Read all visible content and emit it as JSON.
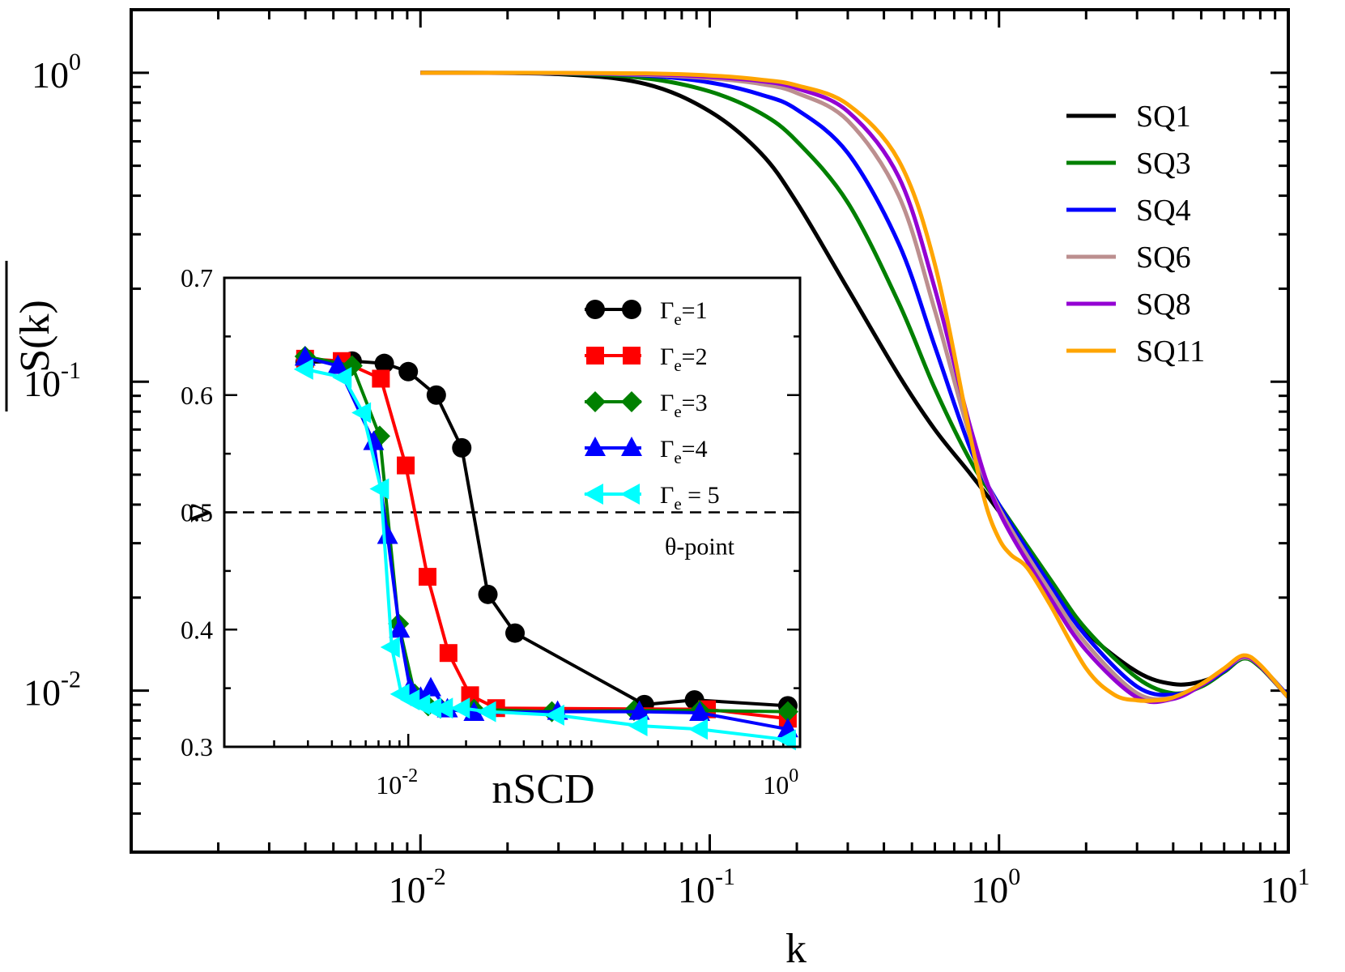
{
  "chart_data": [
    {
      "type": "line",
      "name": "main",
      "xscale": "log",
      "yscale": "log",
      "xlim": [
        0.001,
        10
      ],
      "ylim": [
        0.003,
        1.6
      ],
      "xlabel": "k",
      "ylabel": "S(k)",
      "xticks": [
        {
          "base": "10",
          "exp": "-2",
          "value": 0.01
        },
        {
          "base": "10",
          "exp": "-1",
          "value": 0.1
        },
        {
          "base": "10",
          "exp": "0",
          "value": 1
        },
        {
          "base": "10",
          "exp": "1",
          "value": 10
        }
      ],
      "yticks": [
        {
          "base": "10",
          "exp": "0",
          "value": 1
        },
        {
          "base": "10",
          "exp": "-1",
          "value": 0.1
        },
        {
          "base": "10",
          "exp": "-2",
          "value": 0.01
        }
      ],
      "legend_position": "top-right",
      "series": [
        {
          "name": "SQ1",
          "color": "#000000",
          "x": [
            0.01,
            0.03,
            0.06,
            0.1,
            0.15,
            0.2,
            0.3,
            0.45,
            0.6,
            0.8,
            1.0,
            1.5,
            2.0,
            3.0,
            4.0,
            5.0,
            6.0,
            7.0,
            8.0,
            10.0
          ],
          "y": [
            1.0,
            0.99,
            0.92,
            0.75,
            0.55,
            0.38,
            0.2,
            0.105,
            0.07,
            0.05,
            0.038,
            0.022,
            0.0155,
            0.0115,
            0.0105,
            0.0107,
            0.0115,
            0.0128,
            0.012,
            0.0095
          ]
        },
        {
          "name": "SQ3",
          "color": "#008000",
          "x": [
            0.01,
            0.03,
            0.06,
            0.1,
            0.15,
            0.2,
            0.3,
            0.45,
            0.6,
            0.8,
            1.0,
            1.5,
            2.0,
            3.0,
            4.0,
            5.0,
            6.0,
            7.0,
            8.0,
            10.0
          ],
          "y": [
            1.0,
            0.995,
            0.96,
            0.87,
            0.74,
            0.6,
            0.38,
            0.18,
            0.095,
            0.055,
            0.04,
            0.023,
            0.0158,
            0.011,
            0.0098,
            0.0103,
            0.0115,
            0.0127,
            0.0119,
            0.0095
          ]
        },
        {
          "name": "SQ4",
          "color": "#0000ff",
          "x": [
            0.01,
            0.03,
            0.06,
            0.1,
            0.15,
            0.2,
            0.3,
            0.45,
            0.6,
            0.8,
            1.0,
            1.5,
            2.0,
            3.0,
            4.0,
            5.0,
            6.0,
            7.0,
            8.0,
            10.0
          ],
          "y": [
            1.0,
            0.997,
            0.98,
            0.93,
            0.85,
            0.76,
            0.55,
            0.28,
            0.13,
            0.06,
            0.04,
            0.022,
            0.015,
            0.0103,
            0.0097,
            0.0104,
            0.0116,
            0.0128,
            0.012,
            0.0096
          ]
        },
        {
          "name": "SQ6",
          "color": "#bc8f8f",
          "x": [
            0.01,
            0.03,
            0.06,
            0.1,
            0.15,
            0.2,
            0.3,
            0.45,
            0.6,
            0.8,
            1.0,
            1.5,
            2.0,
            3.0,
            4.0,
            5.0,
            6.0,
            7.0,
            8.0,
            10.0
          ],
          "y": [
            1.0,
            0.998,
            0.985,
            0.96,
            0.92,
            0.86,
            0.7,
            0.4,
            0.17,
            0.065,
            0.039,
            0.021,
            0.0142,
            0.0098,
            0.0095,
            0.0104,
            0.0117,
            0.0128,
            0.012,
            0.0095
          ]
        },
        {
          "name": "SQ8",
          "color": "#9400d3",
          "x": [
            0.01,
            0.03,
            0.06,
            0.1,
            0.15,
            0.2,
            0.3,
            0.45,
            0.6,
            0.8,
            1.0,
            1.5,
            2.0,
            3.0,
            4.0,
            5.0,
            6.0,
            7.0,
            8.0,
            10.0
          ],
          "y": [
            1.0,
            0.998,
            0.99,
            0.97,
            0.94,
            0.89,
            0.75,
            0.46,
            0.2,
            0.07,
            0.038,
            0.02,
            0.0135,
            0.0095,
            0.0094,
            0.0104,
            0.0117,
            0.0129,
            0.012,
            0.0095
          ]
        },
        {
          "name": "SQ11",
          "color": "#ffa500",
          "x": [
            0.01,
            0.03,
            0.06,
            0.1,
            0.15,
            0.2,
            0.3,
            0.45,
            0.6,
            0.8,
            0.9,
            1.0,
            1.1,
            1.25,
            1.5,
            2.0,
            2.5,
            3.0,
            3.5,
            4.0,
            5.0,
            6.0,
            7.0,
            8.0,
            10.0
          ],
          "y": [
            1.0,
            0.999,
            0.995,
            0.98,
            0.95,
            0.91,
            0.79,
            0.52,
            0.24,
            0.065,
            0.04,
            0.031,
            0.0275,
            0.025,
            0.019,
            0.0118,
            0.0097,
            0.0093,
            0.0093,
            0.0095,
            0.0105,
            0.0118,
            0.013,
            0.0121,
            0.0095
          ]
        }
      ]
    },
    {
      "type": "line",
      "name": "inset",
      "xscale": "log",
      "yscale": "linear",
      "xlim": [
        0.0011,
        1.1
      ],
      "ylim": [
        0.3,
        0.7
      ],
      "xlabel": "nSCD",
      "ylabel": "ν",
      "xticks": [
        {
          "base": "10",
          "exp": "-2",
          "value": 0.01
        },
        {
          "base": "10",
          "exp": "0",
          "value": 1
        }
      ],
      "yticks": [
        "0.3",
        "0.4",
        "0.5",
        "0.6",
        "0.7"
      ],
      "reference_line": {
        "y": 0.5,
        "style": "dashed",
        "label": "θ-point"
      },
      "legend_position": "top-right",
      "series": [
        {
          "name": "Γe=1",
          "label_main": "Γ",
          "label_sub": "e",
          "label_rest": "=1",
          "color": "#000000",
          "marker": "circle",
          "x": [
            0.0029,
            0.0051,
            0.0075,
            0.01,
            0.014,
            0.019,
            0.026,
            0.036,
            0.17,
            0.31,
            0.95
          ],
          "y": [
            0.628,
            0.629,
            0.627,
            0.62,
            0.6,
            0.555,
            0.43,
            0.397,
            0.336,
            0.34,
            0.335
          ]
        },
        {
          "name": "Γe=2",
          "label_main": "Γ",
          "label_sub": "e",
          "label_rest": "=2",
          "color": "#ff0000",
          "marker": "square",
          "x": [
            0.0029,
            0.0045,
            0.0072,
            0.0097,
            0.0126,
            0.0162,
            0.021,
            0.0287,
            0.36,
            0.95
          ],
          "y": [
            0.631,
            0.629,
            0.614,
            0.54,
            0.445,
            0.38,
            0.344,
            0.333,
            0.332,
            0.324
          ]
        },
        {
          "name": "Γe=3",
          "label_main": "Γ",
          "label_sub": "e",
          "label_rest": "=3",
          "color": "#008000",
          "marker": "diamond",
          "x": [
            0.0029,
            0.0051,
            0.0071,
            0.0089,
            0.0108,
            0.0127,
            0.0147,
            0.022,
            0.056,
            0.15,
            0.33,
            0.95
          ],
          "y": [
            0.633,
            0.625,
            0.565,
            0.405,
            0.345,
            0.335,
            0.333,
            0.332,
            0.33,
            0.331,
            0.331,
            0.33
          ]
        },
        {
          "name": "Γe=4",
          "label_main": "Γ",
          "label_sub": "e",
          "label_rest": "=4",
          "color": "#0000ff",
          "marker": "triangle-up",
          "x": [
            0.0029,
            0.0043,
            0.0066,
            0.0078,
            0.009,
            0.0102,
            0.0116,
            0.0131,
            0.016,
            0.022,
            0.06,
            0.16,
            0.33,
            0.95
          ],
          "y": [
            0.632,
            0.625,
            0.56,
            0.48,
            0.4,
            0.35,
            0.342,
            0.35,
            0.332,
            0.329,
            0.33,
            0.33,
            0.329,
            0.315
          ]
        },
        {
          "name": "Γe = 5",
          "label_main": "Γ",
          "label_sub": "e",
          "label_rest": " = 5",
          "color": "#00ffff",
          "marker": "triangle-left",
          "x": [
            0.0029,
            0.0046,
            0.0058,
            0.0072,
            0.0082,
            0.0092,
            0.0104,
            0.0118,
            0.0135,
            0.0155,
            0.019,
            0.026,
            0.059,
            0.16,
            0.33,
            0.95
          ],
          "y": [
            0.622,
            0.615,
            0.585,
            0.52,
            0.385,
            0.345,
            0.34,
            0.336,
            0.333,
            0.333,
            0.333,
            0.33,
            0.327,
            0.318,
            0.315,
            0.306
          ]
        }
      ]
    }
  ]
}
